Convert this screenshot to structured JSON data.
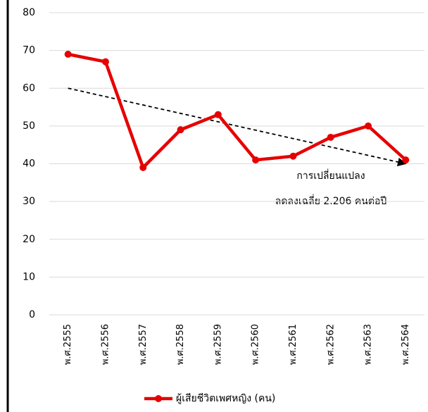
{
  "chart_data": {
    "type": "line",
    "categories": [
      "พ.ศ.2555",
      "พ.ศ.2556",
      "พ.ศ.2557",
      "พ.ศ.2558",
      "พ.ศ.2559",
      "พ.ศ.2560",
      "พ.ศ.2561",
      "พ.ศ.2562",
      "พ.ศ.2563",
      "พ.ศ.2564"
    ],
    "series": [
      {
        "name": "ผู้เสียชีวิตเพศหญิง (คน)",
        "color": "#e60000",
        "values": [
          69,
          67,
          39,
          49,
          53,
          41,
          42,
          47,
          50,
          41
        ]
      }
    ],
    "trendline": {
      "start": 60,
      "end": 40
    },
    "annotations": [
      "การเปลี่ยนแปลง",
      "ลดลงเฉลี่ย 2.206 คนต่อปี"
    ],
    "ylim": [
      0,
      80
    ],
    "yticks": [
      0,
      10,
      20,
      30,
      40,
      50,
      60,
      70,
      80
    ],
    "grid": true,
    "legend": "bottom"
  }
}
